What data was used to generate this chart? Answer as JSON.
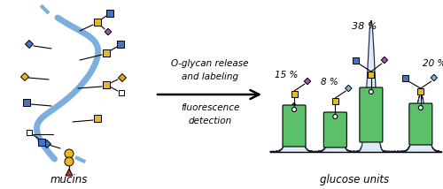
{
  "middle_text_line1": "O-glycan release",
  "middle_text_line2": "and labeling",
  "middle_text_line3": "fluorescence",
  "middle_text_line4": "detection",
  "bottom_label_left": "mucins",
  "bottom_label_right": "glucose units",
  "color_yellow": "#E8B820",
  "color_blue": "#4472C4",
  "color_blue_light": "#7EB5D6",
  "color_purple": "#9B59B6",
  "color_green_tag": "#5CBF6A",
  "color_red": "#C0392B",
  "color_orange": "#E8A020",
  "color_blue_chain": "#5B9BD5",
  "background": "#FFFFFF",
  "fig_width": 5.0,
  "fig_height": 2.14
}
